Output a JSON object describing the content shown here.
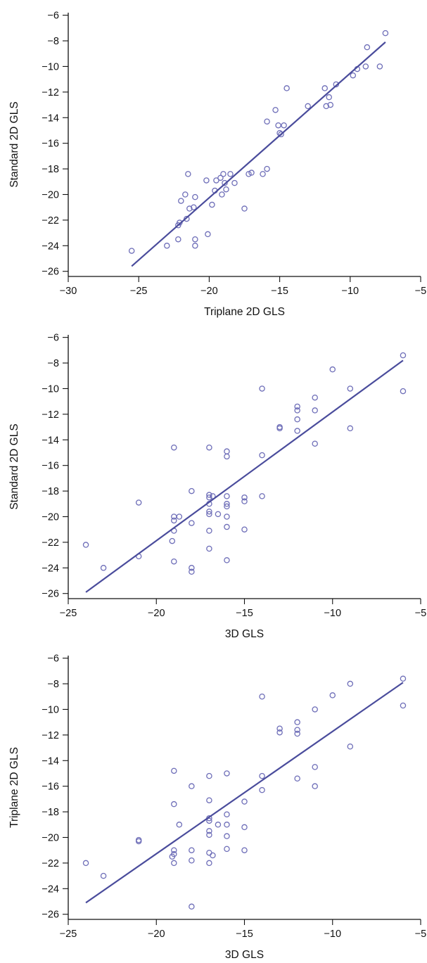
{
  "style": {
    "line_color": "#4a4c9c",
    "point_color": "#6e6eb8",
    "axis_color": "#111111"
  },
  "chart_data": [
    {
      "type": "scatter",
      "xlabel": "Triplane 2D GLS",
      "ylabel": "Standard 2D GLS",
      "xlim": [
        -30,
        -5
      ],
      "ylim": [
        -26.4,
        -5.8
      ],
      "xticks": [
        -30,
        -25,
        -20,
        -15,
        -10,
        -5
      ],
      "yticks": [
        -26,
        -24,
        -22,
        -20,
        -18,
        -16,
        -14,
        -12,
        -10,
        -8,
        -6
      ],
      "xtick_labels": [
        "−30",
        "−25",
        "−20",
        "−15",
        "−10",
        "−5"
      ],
      "ytick_labels": [
        "−26",
        "−24",
        "−22",
        "−20",
        "−18",
        "−16",
        "−14",
        "−12",
        "−10",
        "−8",
        "−6"
      ],
      "points": [
        [
          -25.5,
          -24.4
        ],
        [
          -23,
          -24
        ],
        [
          -22.2,
          -23.5
        ],
        [
          -22.2,
          -22.4
        ],
        [
          -22.1,
          -22.2
        ],
        [
          -22,
          -20.5
        ],
        [
          -21.7,
          -20
        ],
        [
          -21.6,
          -21.9
        ],
        [
          -21.5,
          -18.4
        ],
        [
          -21.4,
          -21.1
        ],
        [
          -21.1,
          -21
        ],
        [
          -21,
          -20.2
        ],
        [
          -21,
          -23.5
        ],
        [
          -21,
          -24
        ],
        [
          -20.2,
          -18.9
        ],
        [
          -20.1,
          -23.1
        ],
        [
          -19.8,
          -20.8
        ],
        [
          -19.6,
          -19.7
        ],
        [
          -19.5,
          -18.9
        ],
        [
          -19.2,
          -18.7
        ],
        [
          -19.1,
          -20
        ],
        [
          -19,
          -18.4
        ],
        [
          -18.9,
          -19.1
        ],
        [
          -18.8,
          -19.6
        ],
        [
          -18.5,
          -18.4
        ],
        [
          -18.2,
          -19.1
        ],
        [
          -17.5,
          -21.1
        ],
        [
          -17.2,
          -18.4
        ],
        [
          -17,
          -18.3
        ],
        [
          -16.2,
          -18.4
        ],
        [
          -15.9,
          -18
        ],
        [
          -15.9,
          -14.3
        ],
        [
          -15.3,
          -13.4
        ],
        [
          -15.1,
          -14.6
        ],
        [
          -15,
          -15.2
        ],
        [
          -14.9,
          -15.3
        ],
        [
          -14.7,
          -14.6
        ],
        [
          -14.5,
          -11.7
        ],
        [
          -13,
          -13.1
        ],
        [
          -11.8,
          -11.7
        ],
        [
          -11.7,
          -13.1
        ],
        [
          -11.5,
          -12.4
        ],
        [
          -11.4,
          -13
        ],
        [
          -11,
          -11.4
        ],
        [
          -9.8,
          -10.7
        ],
        [
          -9.5,
          -10.2
        ],
        [
          -8.9,
          -10
        ],
        [
          -8.8,
          -8.5
        ],
        [
          -7.9,
          -10
        ],
        [
          -7.5,
          -7.4
        ]
      ],
      "fit_line": [
        [
          -25.5,
          -25.6
        ],
        [
          -7.5,
          -8.1
        ]
      ]
    },
    {
      "type": "scatter",
      "xlabel": "3D GLS",
      "ylabel": "Standard 2D GLS",
      "xlim": [
        -25,
        -5
      ],
      "ylim": [
        -26.4,
        -5.8
      ],
      "xticks": [
        -25,
        -20,
        -15,
        -10,
        -5
      ],
      "yticks": [
        -26,
        -24,
        -22,
        -20,
        -18,
        -16,
        -14,
        -12,
        -10,
        -8,
        -6
      ],
      "xtick_labels": [
        "−25",
        "−20",
        "−15",
        "−10",
        "−5"
      ],
      "ytick_labels": [
        "−26",
        "−24",
        "−22",
        "−20",
        "−18",
        "−16",
        "−14",
        "−12",
        "−10",
        "−8",
        "−6"
      ],
      "points": [
        [
          -24,
          -22.2
        ],
        [
          -23,
          -24
        ],
        [
          -21,
          -18.9
        ],
        [
          -21,
          -23.1
        ],
        [
          -19,
          -14.6
        ],
        [
          -19,
          -20
        ],
        [
          -19,
          -20.3
        ],
        [
          -19,
          -21.1
        ],
        [
          -19.1,
          -21.9
        ],
        [
          -19,
          -23.5
        ],
        [
          -18.7,
          -20
        ],
        [
          -18,
          -18
        ],
        [
          -18,
          -20.5
        ],
        [
          -18,
          -24
        ],
        [
          -18,
          -24.3
        ],
        [
          -17,
          -14.6
        ],
        [
          -17,
          -18.3
        ],
        [
          -17,
          -18.5
        ],
        [
          -17,
          -19
        ],
        [
          -17,
          -19.6
        ],
        [
          -17,
          -19.8
        ],
        [
          -17,
          -21.1
        ],
        [
          -17,
          -22.5
        ],
        [
          -16.8,
          -18.4
        ],
        [
          -16.5,
          -19.8
        ],
        [
          -16,
          -14.9
        ],
        [
          -16,
          -15.3
        ],
        [
          -16,
          -18.4
        ],
        [
          -16,
          -19
        ],
        [
          -16,
          -19.2
        ],
        [
          -16,
          -20
        ],
        [
          -16,
          -20.8
        ],
        [
          -16,
          -23.4
        ],
        [
          -15,
          -18.5
        ],
        [
          -15,
          -18.8
        ],
        [
          -15,
          -21
        ],
        [
          -14,
          -10
        ],
        [
          -14,
          -15.2
        ],
        [
          -14,
          -18.4
        ],
        [
          -13,
          -13
        ],
        [
          -13,
          -13.1
        ],
        [
          -12,
          -11.4
        ],
        [
          -12,
          -11.7
        ],
        [
          -12,
          -12.4
        ],
        [
          -12,
          -13.3
        ],
        [
          -11,
          -10.7
        ],
        [
          -11,
          -11.7
        ],
        [
          -11,
          -14.3
        ],
        [
          -10,
          -8.5
        ],
        [
          -9,
          -10
        ],
        [
          -9,
          -13.1
        ],
        [
          -6,
          -7.4
        ],
        [
          -6,
          -10.2
        ]
      ],
      "fit_line": [
        [
          -24,
          -25.9
        ],
        [
          -6,
          -7.8
        ]
      ]
    },
    {
      "type": "scatter",
      "xlabel": "3D GLS",
      "ylabel": "Triplane 2D GLS",
      "xlim": [
        -25,
        -5
      ],
      "ylim": [
        -26.4,
        -5.8
      ],
      "xticks": [
        -25,
        -20,
        -15,
        -10,
        -5
      ],
      "yticks": [
        -26,
        -24,
        -22,
        -20,
        -18,
        -16,
        -14,
        -12,
        -10,
        -8,
        -6
      ],
      "xtick_labels": [
        "−25",
        "−20",
        "−15",
        "−10",
        "−5"
      ],
      "ytick_labels": [
        "−26",
        "−24",
        "−22",
        "−20",
        "−18",
        "−16",
        "−14",
        "−12",
        "−10",
        "−8",
        "−6"
      ],
      "points": [
        [
          -24,
          -22
        ],
        [
          -23,
          -23
        ],
        [
          -21,
          -20.2
        ],
        [
          -21,
          -20.3
        ],
        [
          -19,
          -14.8
        ],
        [
          -19,
          -17.4
        ],
        [
          -19,
          -21
        ],
        [
          -19,
          -21.3
        ],
        [
          -19.1,
          -21.5
        ],
        [
          -19,
          -22
        ],
        [
          -18.7,
          -19
        ],
        [
          -18,
          -16
        ],
        [
          -18,
          -21
        ],
        [
          -18,
          -21.8
        ],
        [
          -18,
          -25.4
        ],
        [
          -17,
          -15.2
        ],
        [
          -17,
          -17.1
        ],
        [
          -17,
          -18.5
        ],
        [
          -17,
          -18.7
        ],
        [
          -17,
          -19.5
        ],
        [
          -17,
          -19.8
        ],
        [
          -17,
          -21.2
        ],
        [
          -17,
          -22
        ],
        [
          -16.8,
          -21.4
        ],
        [
          -16.5,
          -19
        ],
        [
          -16,
          -15
        ],
        [
          -16,
          -18.2
        ],
        [
          -16,
          -19
        ],
        [
          -16,
          -19.9
        ],
        [
          -16,
          -20.9
        ],
        [
          -15,
          -17.2
        ],
        [
          -15,
          -19.2
        ],
        [
          -15,
          -21
        ],
        [
          -14,
          -9
        ],
        [
          -14,
          -15.2
        ],
        [
          -14,
          -16.3
        ],
        [
          -13,
          -11.5
        ],
        [
          -13,
          -11.8
        ],
        [
          -12,
          -11
        ],
        [
          -12,
          -11.6
        ],
        [
          -12,
          -11.9
        ],
        [
          -12,
          -15.4
        ],
        [
          -11,
          -10
        ],
        [
          -11,
          -14.5
        ],
        [
          -11,
          -16
        ],
        [
          -10,
          -8.9
        ],
        [
          -9,
          -8
        ],
        [
          -9,
          -12.9
        ],
        [
          -6,
          -7.6
        ],
        [
          -6,
          -9.7
        ]
      ],
      "fit_line": [
        [
          -24,
          -25.1
        ],
        [
          -6,
          -7.9
        ]
      ]
    }
  ]
}
